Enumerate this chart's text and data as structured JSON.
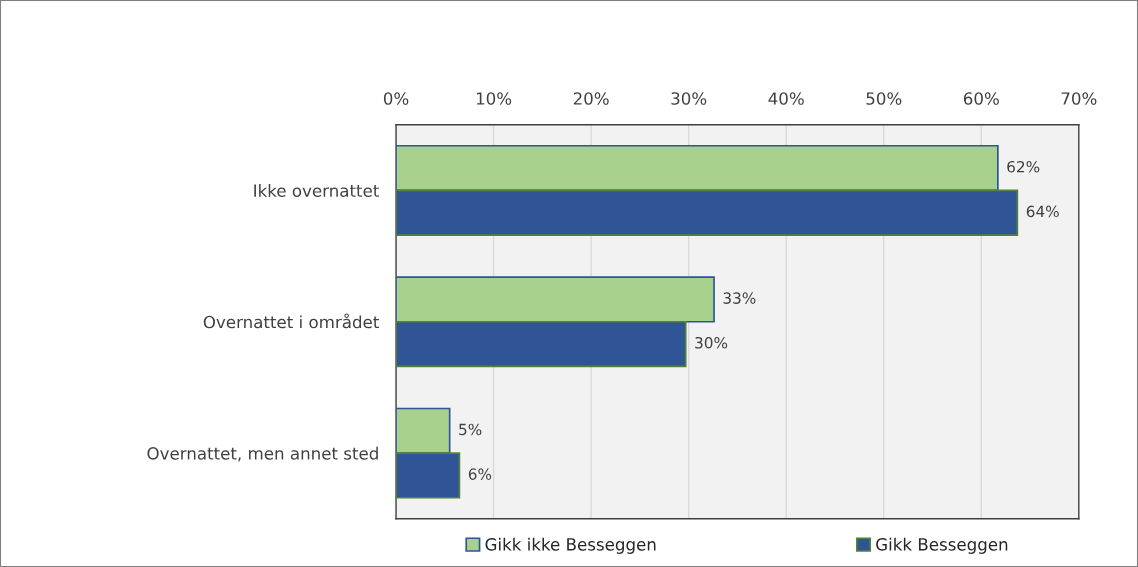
{
  "chart_data": {
    "type": "bar",
    "orientation": "horizontal",
    "categories": [
      "Ikke overnattet",
      "Overnattet i området",
      "Overnattet, men annet sted"
    ],
    "series": [
      {
        "name": "Gikk ikke Besseggen",
        "color": "#a9d18e",
        "values": [
          61.7,
          32.6,
          5.5
        ],
        "value_labels": [
          "62%",
          "33%",
          "5%"
        ]
      },
      {
        "name": "Gikk Besseggen",
        "color": "#2f5597",
        "values": [
          63.7,
          29.7,
          6.5
        ],
        "value_labels": [
          "64%",
          "30%",
          "6%"
        ]
      }
    ],
    "xlim": [
      0,
      70
    ],
    "xticks": [
      {
        "value": 0,
        "label": "0%"
      },
      {
        "value": 10,
        "label": "10%"
      },
      {
        "value": 20,
        "label": "20%"
      },
      {
        "value": 30,
        "label": "30%"
      },
      {
        "value": 40,
        "label": "40%"
      },
      {
        "value": 50,
        "label": "50%"
      },
      {
        "value": 60,
        "label": "60%"
      },
      {
        "value": 70,
        "label": "70%"
      }
    ],
    "grid": "x",
    "legend": "bottom"
  }
}
